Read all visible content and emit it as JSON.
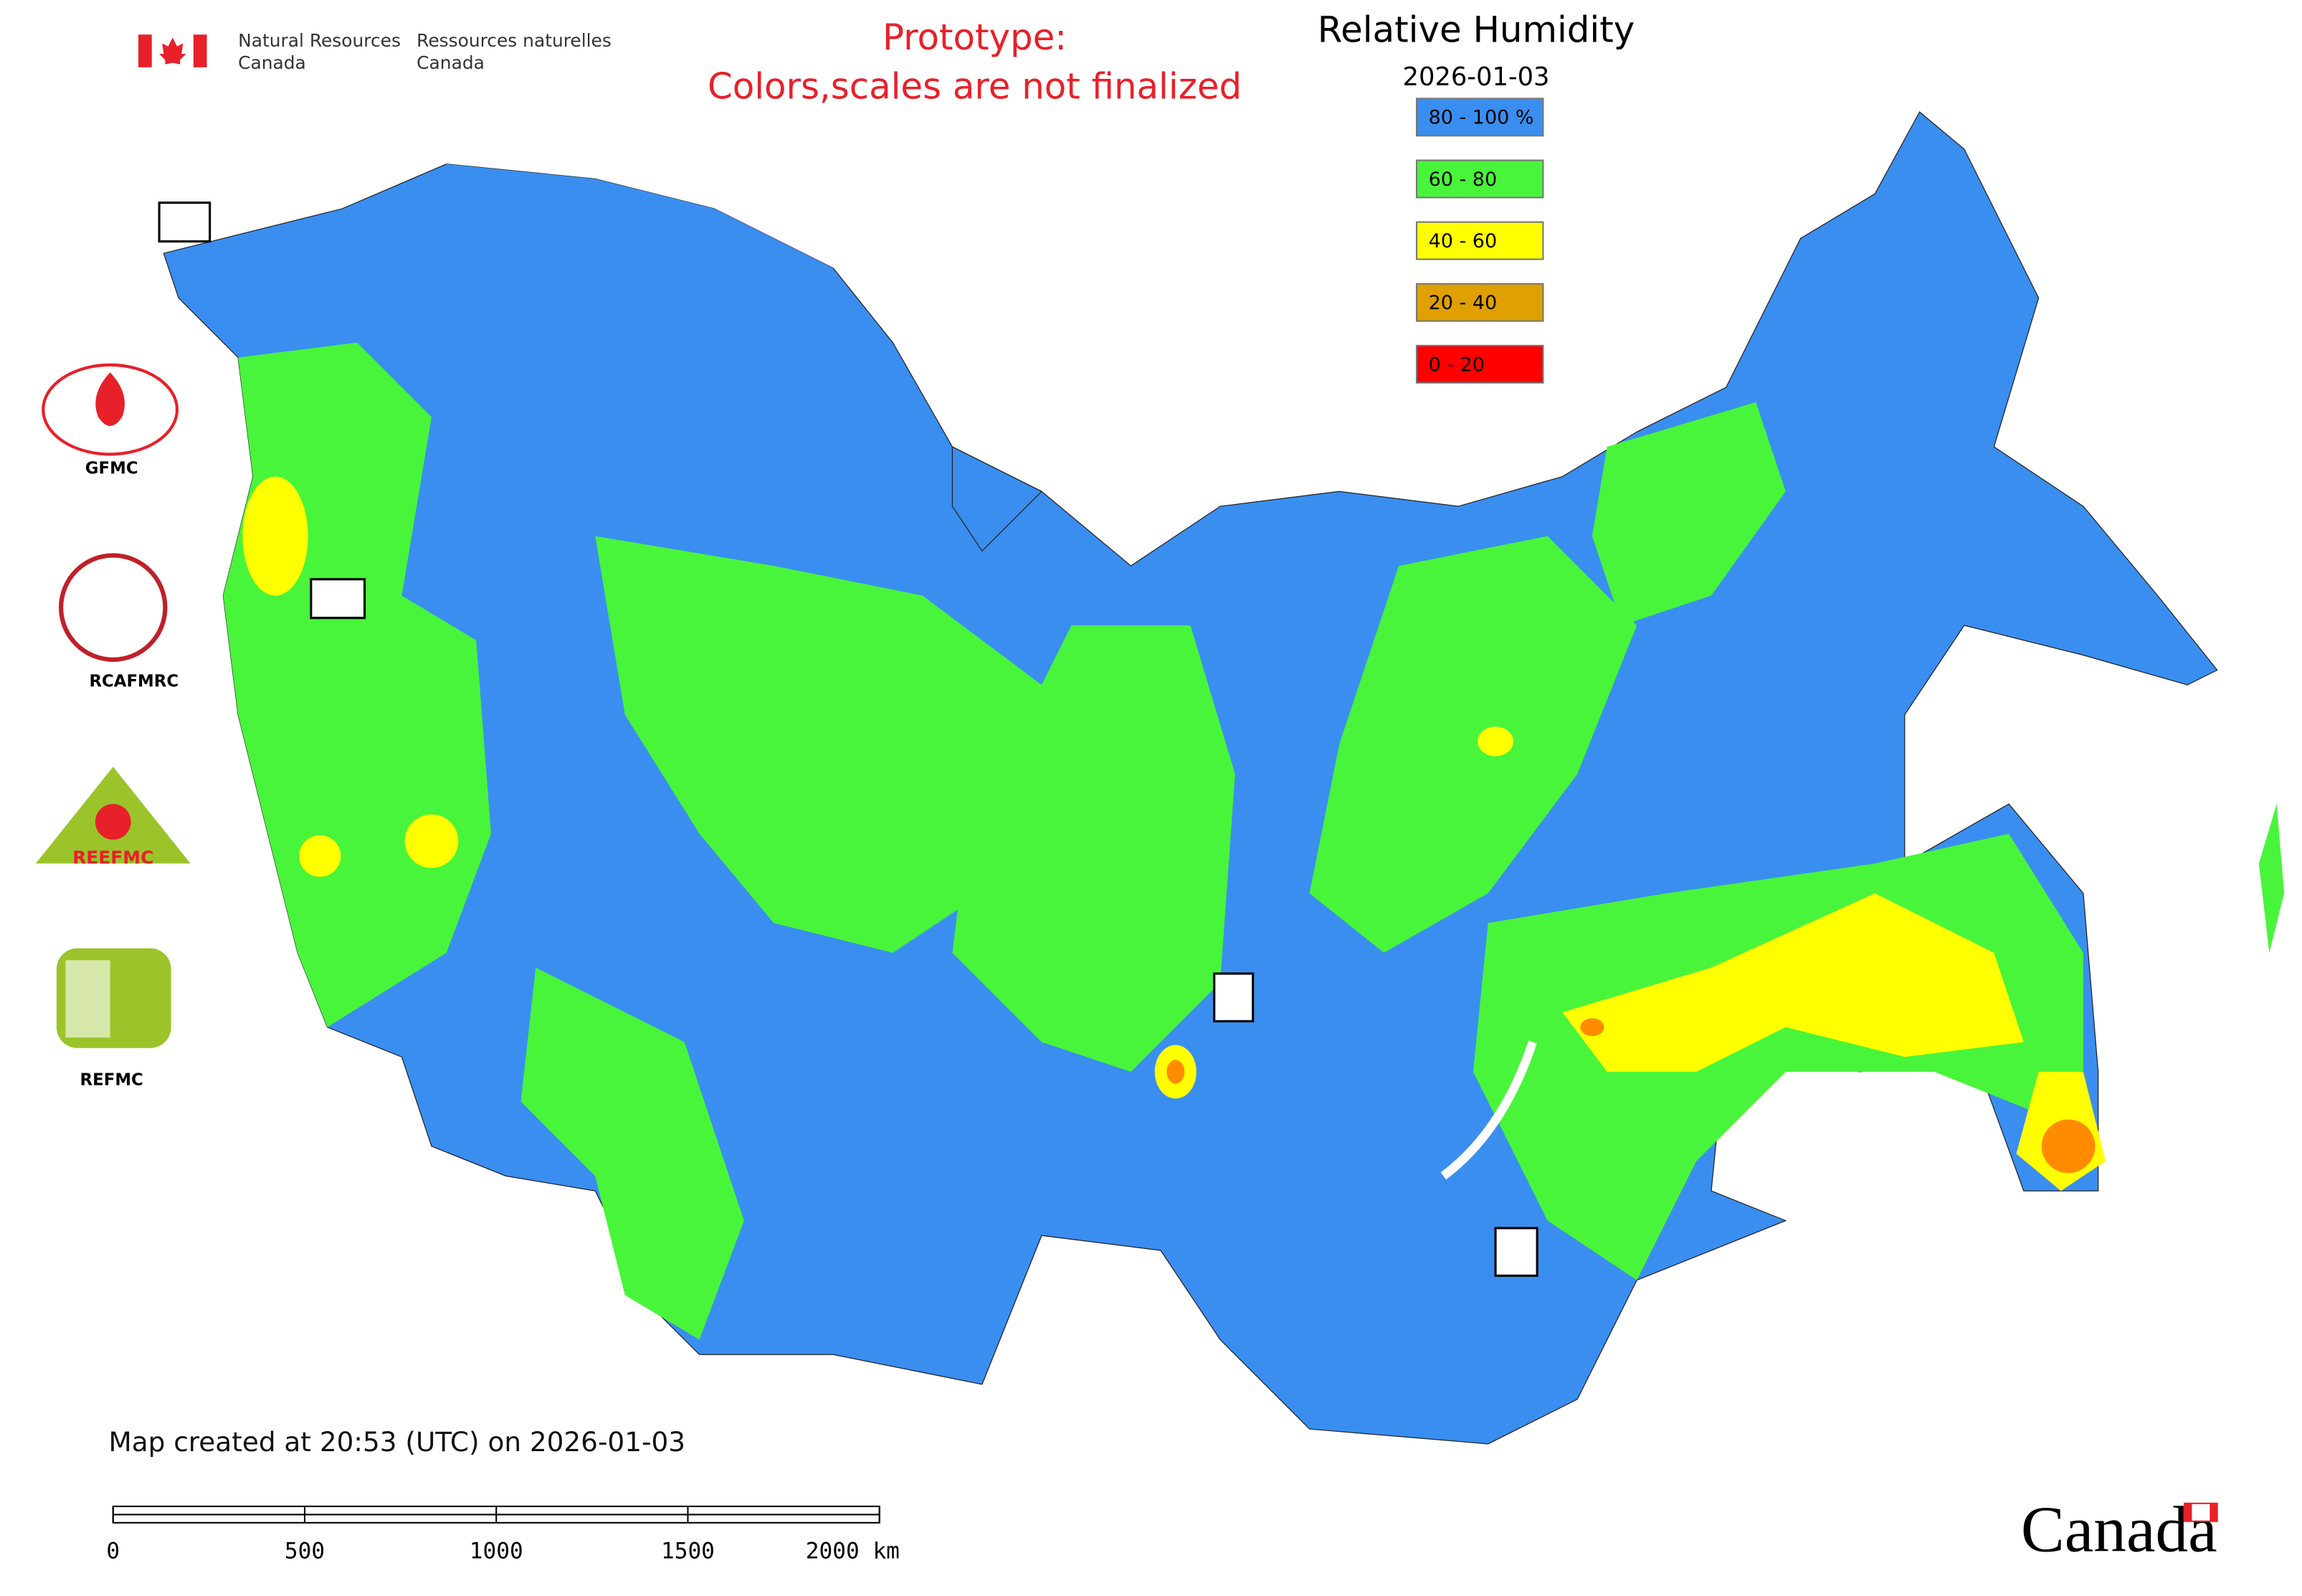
{
  "header": {
    "agency_en": [
      "Natural Resources",
      "Canada"
    ],
    "agency_fr": [
      "Ressources naturelles",
      "Canada"
    ],
    "notice": [
      "Prototype:",
      "Colors,scales are not finalized"
    ]
  },
  "map": {
    "title": "Relative Humidity",
    "date": "2026-01-03"
  },
  "legend": {
    "items": [
      {
        "label": "80 - 100 %",
        "color": "#3a8ef0"
      },
      {
        "label": "60 - 80",
        "color": "#48f53a"
      },
      {
        "label": "40 - 60",
        "color": "#ffff00"
      },
      {
        "label": "20 - 40",
        "color": "#e0a000"
      },
      {
        "label": "0 - 20",
        "color": "#ff0000"
      }
    ]
  },
  "logos": [
    "GFMC",
    "RCAFMRC",
    "REEFMC",
    "REFMC"
  ],
  "footer": {
    "created": "Map created at 20:53 (UTC) on 2026-01-03",
    "wordmark": "Canada"
  },
  "scale_bar": {
    "labels": [
      "0",
      "500",
      "1000",
      "1500",
      "2000 km"
    ]
  }
}
